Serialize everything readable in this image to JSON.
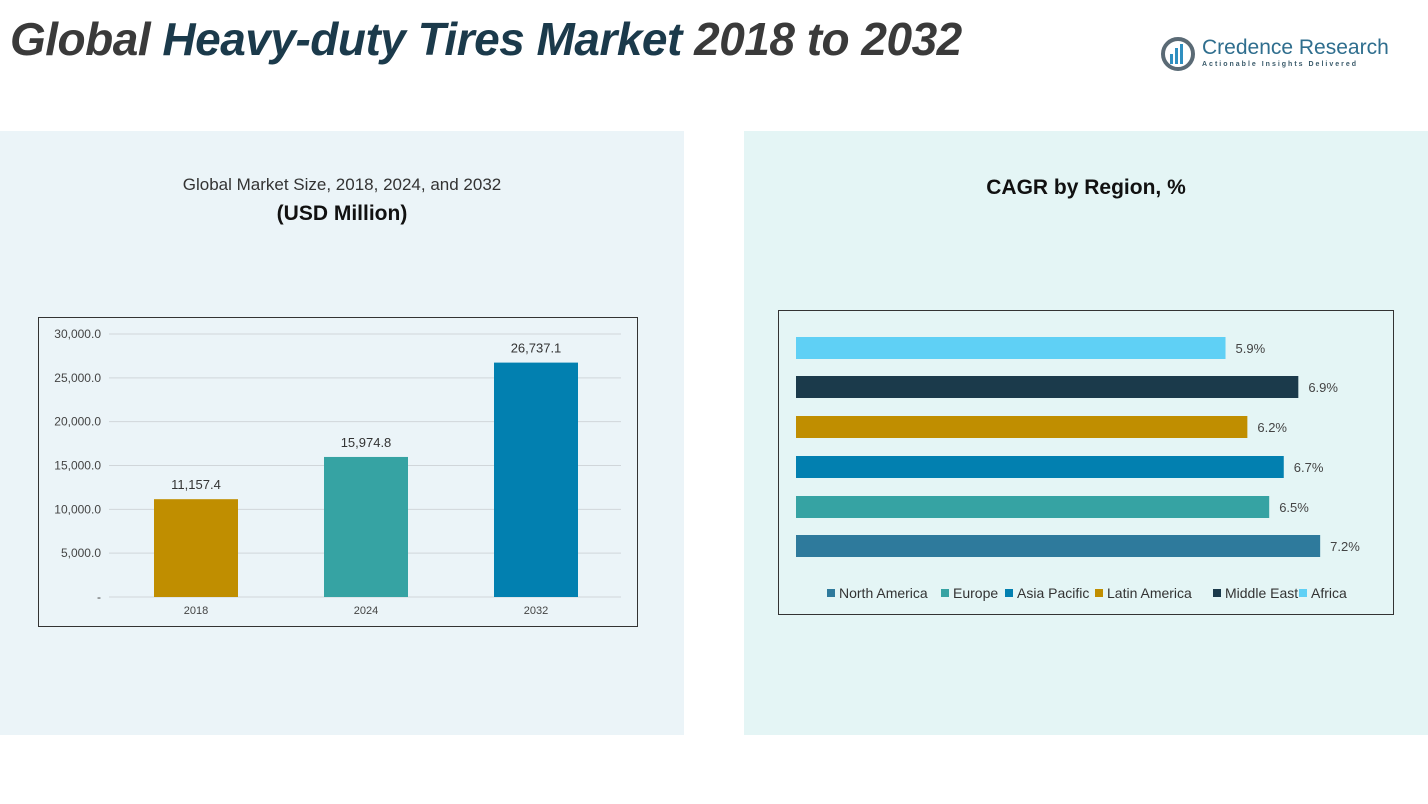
{
  "header": {
    "title_part1": "Global ",
    "title_part2": "Heavy-duty Tires Market",
    "title_part3": " 2018 to 2032"
  },
  "logo": {
    "name": "Credence Research",
    "tagline": "Actionable Insights Delivered",
    "icon": "bar-chart-circle-icon"
  },
  "chart_data": [
    {
      "type": "bar",
      "title": "Global Market Size, 2018, 2024, and 2032",
      "subtitle": "(USD Million)",
      "categories": [
        "2018",
        "2024",
        "2032"
      ],
      "values": [
        11157.4,
        15974.8,
        26737.1
      ],
      "value_labels": [
        "11,157.4",
        "15,974.8",
        "26,737.1"
      ],
      "ylim": [
        0,
        30000
      ],
      "yticks": [
        "-",
        "5,000.0",
        "10,000.0",
        "15,000.0",
        "20,000.0",
        "25,000.0",
        "30,000.0"
      ],
      "colors": [
        "#c08e00",
        "#36a3a3",
        "#0280b0"
      ],
      "grid": true
    },
    {
      "type": "bar",
      "orientation": "horizontal",
      "title": "CAGR by Region, %",
      "categories": [
        "North America",
        "Europe",
        "Asia Pacific",
        "Latin America",
        "Middle East",
        "Africa"
      ],
      "values": [
        7.2,
        6.5,
        6.7,
        6.2,
        6.9,
        5.9
      ],
      "value_labels": [
        "7.2%",
        "6.5%",
        "6.7%",
        "6.2%",
        "6.9%",
        "5.9%"
      ],
      "colors": [
        "#2e7a9c",
        "#36a3a3",
        "#0280b0",
        "#c08e00",
        "#1b3a4b",
        "#5fd0f5"
      ],
      "legend": "bottom",
      "grid": false
    }
  ]
}
